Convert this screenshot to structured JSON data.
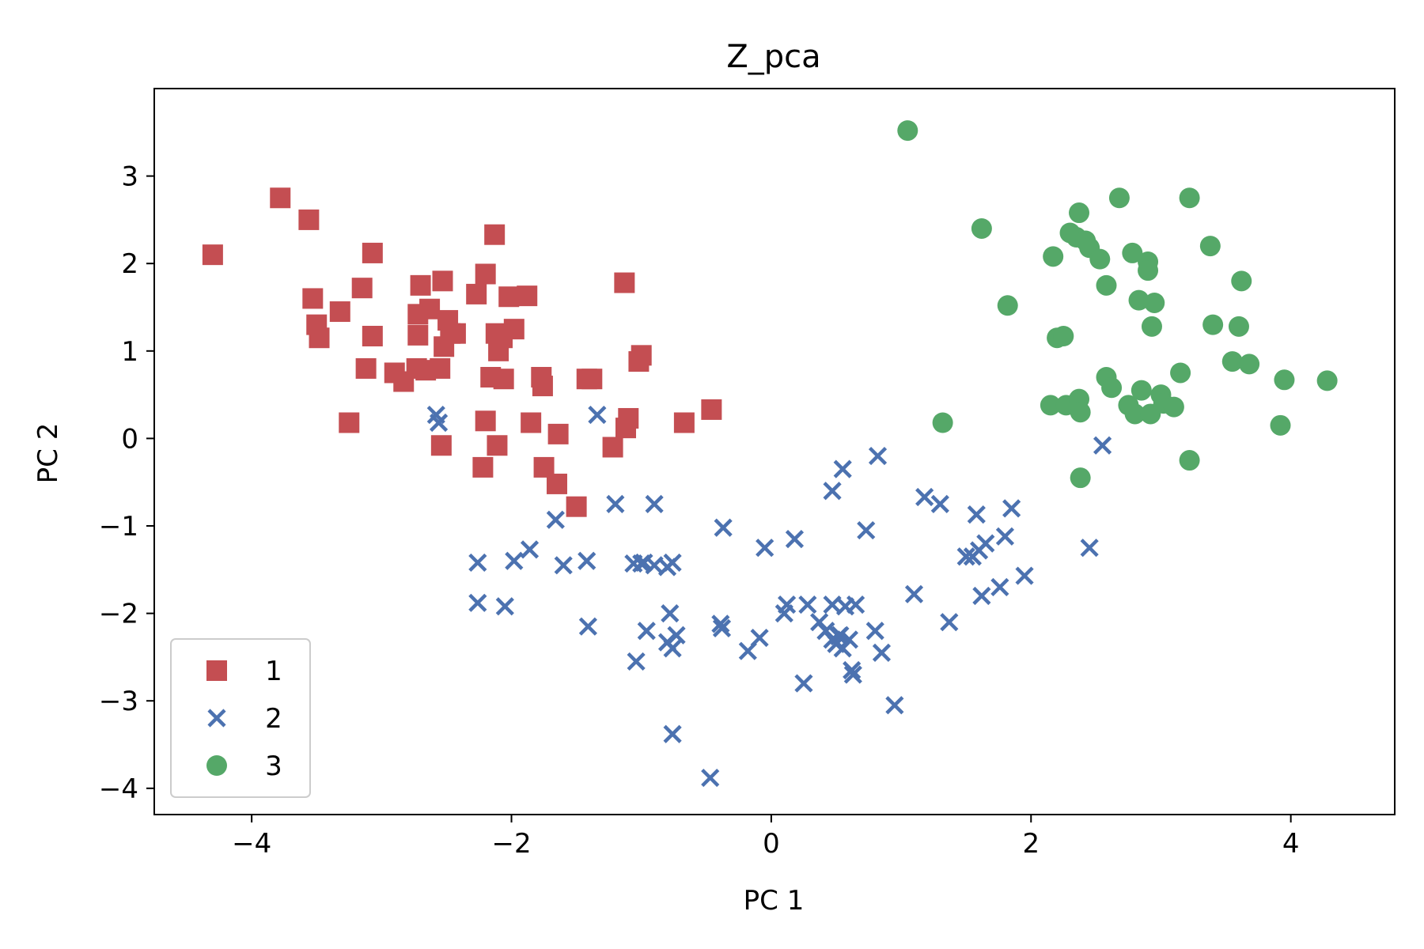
{
  "chart_data": {
    "type": "scatter",
    "title": "Z_pca",
    "xlabel": "PC 1",
    "ylabel": "PC 2",
    "xlim": [
      -4.75,
      4.8
    ],
    "ylim": [
      -4.3,
      4.0
    ],
    "xticks": [
      -4,
      -2,
      0,
      2,
      4
    ],
    "xtick_labels": [
      "−4",
      "−2",
      "0",
      "2",
      "4"
    ],
    "yticks": [
      3,
      2,
      1,
      0,
      -1,
      -2,
      -3,
      -4
    ],
    "ytick_labels": [
      "3",
      "2",
      "1",
      "0",
      "−1",
      "−2",
      "−3",
      "−4"
    ],
    "grid": false,
    "legend_position": "lower-left",
    "series": [
      {
        "name": "1",
        "marker": "square",
        "color": "#c44e52",
        "points": [
          [
            -4.3,
            2.1
          ],
          [
            -3.78,
            2.75
          ],
          [
            -3.56,
            2.5
          ],
          [
            -3.53,
            1.6
          ],
          [
            -3.5,
            1.3
          ],
          [
            -3.48,
            1.15
          ],
          [
            -3.32,
            1.45
          ],
          [
            -3.25,
            0.18
          ],
          [
            -3.15,
            1.72
          ],
          [
            -3.12,
            0.8
          ],
          [
            -3.07,
            2.12
          ],
          [
            -3.07,
            1.17
          ],
          [
            -2.9,
            0.75
          ],
          [
            -2.83,
            0.65
          ],
          [
            -2.73,
            0.8
          ],
          [
            -2.72,
            1.18
          ],
          [
            -2.72,
            1.42
          ],
          [
            -2.7,
            1.75
          ],
          [
            -2.66,
            0.78
          ],
          [
            -2.63,
            1.48
          ],
          [
            -2.55,
            0.8
          ],
          [
            -2.53,
            1.8
          ],
          [
            -2.52,
            1.05
          ],
          [
            -2.49,
            1.35
          ],
          [
            -2.47,
            1.2
          ],
          [
            -2.43,
            1.2
          ],
          [
            -2.54,
            -0.08
          ],
          [
            -2.27,
            1.65
          ],
          [
            -2.2,
            0.2
          ],
          [
            -2.2,
            1.88
          ],
          [
            -2.16,
            0.7
          ],
          [
            -2.13,
            2.33
          ],
          [
            -2.12,
            1.2
          ],
          [
            -2.1,
            1.0
          ],
          [
            -2.07,
            1.15
          ],
          [
            -2.06,
            0.68
          ],
          [
            -2.02,
            1.62
          ],
          [
            -1.98,
            1.25
          ],
          [
            -1.88,
            1.63
          ],
          [
            -1.85,
            0.18
          ],
          [
            -1.77,
            0.7
          ],
          [
            -1.76,
            0.6
          ],
          [
            -1.75,
            -0.33
          ],
          [
            -1.65,
            -0.52
          ],
          [
            -1.64,
            0.05
          ],
          [
            -1.5,
            -0.78
          ],
          [
            -1.42,
            0.68
          ],
          [
            -1.38,
            0.68
          ],
          [
            -1.13,
            1.78
          ],
          [
            -1.1,
            0.23
          ],
          [
            -1.12,
            0.12
          ],
          [
            -1.22,
            -0.1
          ],
          [
            -2.22,
            -0.33
          ],
          [
            -2.11,
            -0.08
          ],
          [
            -1.0,
            0.95
          ],
          [
            -1.02,
            0.88
          ],
          [
            -0.67,
            0.18
          ],
          [
            -0.46,
            0.33
          ]
        ]
      },
      {
        "name": "2",
        "marker": "x",
        "color": "#4c72b0",
        "points": [
          [
            -2.58,
            0.27
          ],
          [
            -2.56,
            0.18
          ],
          [
            -1.34,
            0.27
          ],
          [
            -2.26,
            -1.42
          ],
          [
            -2.26,
            -1.88
          ],
          [
            -2.05,
            -1.92
          ],
          [
            -1.98,
            -1.4
          ],
          [
            -1.86,
            -1.27
          ],
          [
            -1.66,
            -0.93
          ],
          [
            -1.6,
            -1.45
          ],
          [
            -1.42,
            -1.4
          ],
          [
            -1.41,
            -2.15
          ],
          [
            -1.2,
            -0.75
          ],
          [
            -1.06,
            -1.43
          ],
          [
            -1.04,
            -2.55
          ],
          [
            -1.0,
            -1.43
          ],
          [
            -0.98,
            -1.42
          ],
          [
            -0.96,
            -2.2
          ],
          [
            -0.9,
            -0.75
          ],
          [
            -0.9,
            -1.45
          ],
          [
            -0.8,
            -1.47
          ],
          [
            -0.8,
            -2.33
          ],
          [
            -0.78,
            -2.0
          ],
          [
            -0.76,
            -2.4
          ],
          [
            -0.76,
            -1.42
          ],
          [
            -0.76,
            -3.38
          ],
          [
            -0.73,
            -2.25
          ],
          [
            -0.47,
            -3.88
          ],
          [
            -0.39,
            -2.12
          ],
          [
            -0.38,
            -2.17
          ],
          [
            -0.37,
            -1.02
          ],
          [
            -0.18,
            -2.43
          ],
          [
            -0.09,
            -2.28
          ],
          [
            -0.05,
            -1.25
          ],
          [
            0.1,
            -2.0
          ],
          [
            0.12,
            -1.9
          ],
          [
            0.18,
            -1.15
          ],
          [
            0.25,
            -2.8
          ],
          [
            0.28,
            -1.9
          ],
          [
            0.37,
            -2.1
          ],
          [
            0.42,
            -2.2
          ],
          [
            0.47,
            -1.9
          ],
          [
            0.47,
            -2.3
          ],
          [
            0.5,
            -2.35
          ],
          [
            0.52,
            -2.26
          ],
          [
            0.53,
            -2.25
          ],
          [
            0.55,
            -2.4
          ],
          [
            0.57,
            -1.92
          ],
          [
            0.6,
            -2.3
          ],
          [
            0.62,
            -2.65
          ],
          [
            0.63,
            -2.7
          ],
          [
            0.65,
            -1.9
          ],
          [
            0.47,
            -0.6
          ],
          [
            0.55,
            -0.35
          ],
          [
            0.8,
            -2.2
          ],
          [
            0.82,
            -0.2
          ],
          [
            0.85,
            -2.45
          ],
          [
            0.95,
            -3.05
          ],
          [
            0.73,
            -1.05
          ],
          [
            1.1,
            -1.78
          ],
          [
            1.18,
            -0.67
          ],
          [
            1.3,
            -0.75
          ],
          [
            1.37,
            -2.1
          ],
          [
            1.5,
            -1.35
          ],
          [
            1.55,
            -1.35
          ],
          [
            1.58,
            -0.87
          ],
          [
            1.6,
            -1.28
          ],
          [
            1.62,
            -1.8
          ],
          [
            1.65,
            -1.2
          ],
          [
            1.76,
            -1.7
          ],
          [
            1.8,
            -1.12
          ],
          [
            1.85,
            -0.8
          ],
          [
            1.95,
            -1.57
          ],
          [
            2.45,
            -1.25
          ],
          [
            2.55,
            -0.08
          ]
        ]
      },
      {
        "name": "3",
        "marker": "circle",
        "color": "#55a868",
        "points": [
          [
            1.05,
            3.52
          ],
          [
            1.62,
            2.4
          ],
          [
            1.32,
            0.18
          ],
          [
            1.82,
            1.52
          ],
          [
            2.17,
            2.08
          ],
          [
            2.15,
            0.38
          ],
          [
            2.2,
            1.15
          ],
          [
            2.25,
            1.17
          ],
          [
            2.27,
            0.38
          ],
          [
            2.3,
            2.35
          ],
          [
            2.35,
            2.3
          ],
          [
            2.37,
            2.58
          ],
          [
            2.37,
            0.45
          ],
          [
            2.38,
            0.3
          ],
          [
            2.38,
            -0.45
          ],
          [
            2.42,
            2.26
          ],
          [
            2.45,
            2.18
          ],
          [
            2.53,
            2.05
          ],
          [
            2.58,
            1.75
          ],
          [
            2.58,
            0.7
          ],
          [
            2.62,
            0.58
          ],
          [
            2.68,
            2.75
          ],
          [
            2.75,
            0.38
          ],
          [
            2.78,
            2.12
          ],
          [
            2.8,
            0.28
          ],
          [
            2.83,
            1.58
          ],
          [
            2.85,
            0.55
          ],
          [
            2.9,
            2.02
          ],
          [
            2.9,
            1.92
          ],
          [
            2.92,
            0.28
          ],
          [
            2.93,
            1.28
          ],
          [
            2.95,
            1.55
          ],
          [
            3.0,
            0.5
          ],
          [
            3.02,
            0.4
          ],
          [
            3.1,
            0.36
          ],
          [
            3.15,
            0.75
          ],
          [
            3.22,
            2.75
          ],
          [
            3.22,
            -0.25
          ],
          [
            3.38,
            2.2
          ],
          [
            3.4,
            1.3
          ],
          [
            3.55,
            0.88
          ],
          [
            3.6,
            1.28
          ],
          [
            3.62,
            1.8
          ],
          [
            3.68,
            0.85
          ],
          [
            3.92,
            0.15
          ],
          [
            3.95,
            0.67
          ],
          [
            4.28,
            0.66
          ]
        ]
      }
    ]
  }
}
